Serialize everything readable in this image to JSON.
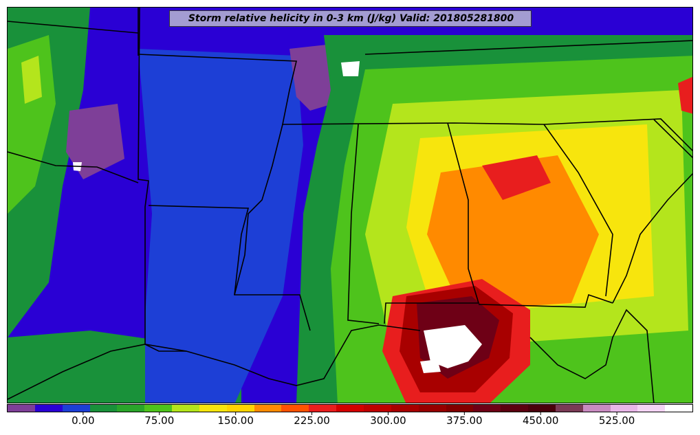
{
  "map": {
    "title": "Storm relative helicity in 0-3 km (J/kg) Valid: 201805281800",
    "colors": {
      "purple": "#7e3f98",
      "blue_dark": "#2a00d4",
      "blue": "#1d3fd6",
      "green_dark": "#19913a",
      "green": "#4ec31c",
      "yellow_green": "#b4e51c",
      "yellow": "#f7e50d",
      "orange": "#ff8a00",
      "red": "#e81e1e",
      "dark_red": "#a80000",
      "maroon": "#6e0016",
      "pink": "#e8b6e8",
      "white": "#ffffff"
    }
  },
  "colorbar": {
    "colors": [
      "#7e3f98",
      "#2a00d4",
      "#1d3fd6",
      "#19913a",
      "#2aa52a",
      "#4ec31c",
      "#b4e51c",
      "#f7e50d",
      "#ffd400",
      "#ff8a00",
      "#ff5200",
      "#e81e1e",
      "#d40000",
      "#bf0000",
      "#a80000",
      "#960000",
      "#820000",
      "#6e0016",
      "#5c0010",
      "#4a000c",
      "#7a3a55",
      "#c88bc0",
      "#e8b6e8",
      "#f4d4f4",
      "#ffffff"
    ],
    "tick_labels": [
      "0.00",
      "75.00",
      "150.00",
      "225.00",
      "300.00",
      "375.00",
      "450.00",
      "525.00"
    ],
    "tick_values": [
      0,
      75,
      150,
      225,
      300,
      375,
      450,
      525
    ],
    "range": [
      -75,
      600
    ]
  }
}
